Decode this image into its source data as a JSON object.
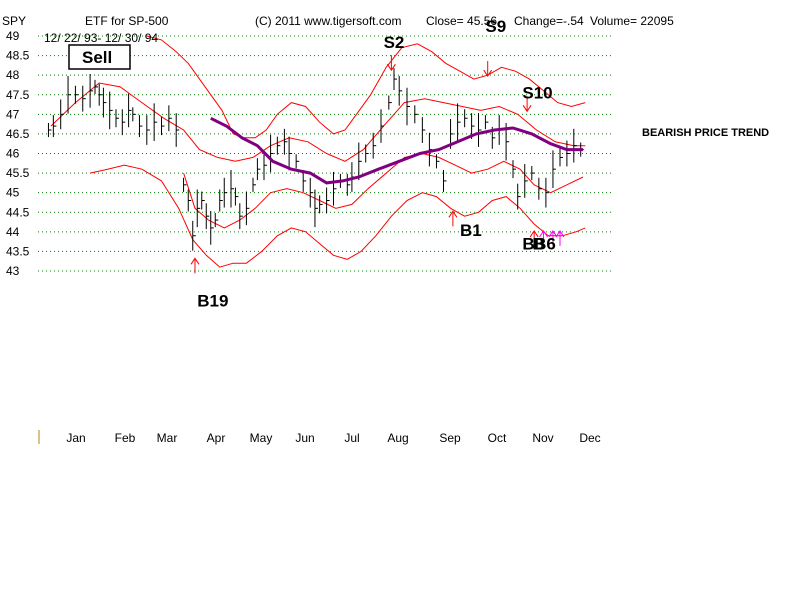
{
  "header": {
    "ticker": "SPY",
    "etf_label": "ETF for SP-500",
    "date_range": "12/ 22/ 93- 12/ 30/ 94",
    "copyright": "(C) 2011 www.tigersoft.com",
    "close_label": "Close=  45.56",
    "change_label": "Change=-.54",
    "volume_label": "Volume= 22095"
  },
  "sell_box_label": "Sell",
  "trend_label": "BEARISH PRICE TREND",
  "colors": {
    "bands": "#ff0000",
    "moving_average": "#800080",
    "bars": "#000000",
    "grid": "#008000",
    "signal_arrows_red": "#ff0000",
    "signal_arrows_magenta": "#ff00ff",
    "axis_tick": "#b8860b"
  },
  "chart_data": {
    "type": "line",
    "title": "",
    "xlabel": "",
    "ylabel": "",
    "ylim": [
      43,
      49
    ],
    "grid": true,
    "y_ticks": [
      49,
      48.5,
      48,
      47.5,
      47,
      46.5,
      46,
      45.5,
      45,
      44.5,
      44,
      43.5,
      43
    ],
    "x_ticks": [
      "Jan",
      "Feb",
      "Mar",
      "Apr",
      "May",
      "Jun",
      "Jul",
      "Aug",
      "Sep",
      "Oct",
      "Nov",
      "Dec"
    ],
    "series": [
      {
        "kind": "price-bars",
        "values": [
          [
            0.05,
            46.6
          ],
          [
            0.15,
            46.7
          ],
          [
            0.3,
            47.0
          ],
          [
            0.45,
            47.5
          ],
          [
            0.6,
            47.5
          ],
          [
            0.75,
            47.4
          ],
          [
            0.9,
            47.6
          ],
          [
            1.0,
            47.7
          ],
          [
            1.1,
            47.5
          ],
          [
            1.2,
            47.3
          ],
          [
            1.35,
            47.1
          ],
          [
            1.5,
            46.9
          ],
          [
            1.65,
            46.8
          ],
          [
            1.8,
            47.1
          ],
          [
            1.9,
            47.0
          ],
          [
            2.05,
            46.7
          ],
          [
            2.2,
            46.6
          ],
          [
            2.35,
            46.8
          ],
          [
            2.5,
            46.7
          ],
          [
            2.65,
            46.9
          ],
          [
            2.8,
            46.6
          ],
          [
            2.95,
            45.2
          ],
          [
            3.05,
            44.8
          ],
          [
            3.15,
            43.9
          ],
          [
            3.25,
            44.6
          ],
          [
            3.35,
            44.8
          ],
          [
            3.45,
            44.4
          ],
          [
            3.55,
            44.1
          ],
          [
            3.65,
            44.3
          ],
          [
            3.75,
            44.8
          ],
          [
            3.85,
            45.0
          ],
          [
            4.0,
            45.1
          ],
          [
            4.1,
            44.9
          ],
          [
            4.2,
            44.4
          ],
          [
            4.35,
            44.6
          ],
          [
            4.5,
            45.2
          ],
          [
            4.6,
            45.6
          ],
          [
            4.75,
            45.7
          ],
          [
            4.9,
            46.0
          ],
          [
            5.05,
            46.2
          ],
          [
            5.2,
            46.3
          ],
          [
            5.3,
            46.0
          ],
          [
            5.45,
            45.8
          ],
          [
            5.6,
            45.3
          ],
          [
            5.75,
            45.0
          ],
          [
            5.85,
            44.6
          ],
          [
            5.95,
            44.7
          ],
          [
            6.1,
            44.8
          ],
          [
            6.25,
            45.1
          ],
          [
            6.4,
            45.3
          ],
          [
            6.55,
            45.2
          ],
          [
            6.65,
            45.4
          ],
          [
            6.8,
            45.8
          ],
          [
            6.95,
            46.0
          ],
          [
            7.1,
            46.2
          ],
          [
            7.25,
            46.7
          ],
          [
            7.4,
            47.3
          ],
          [
            7.5,
            47.9
          ],
          [
            7.6,
            47.6
          ],
          [
            7.75,
            47.2
          ],
          [
            7.9,
            47.0
          ],
          [
            8.05,
            46.6
          ],
          [
            8.2,
            46.1
          ],
          [
            8.35,
            45.8
          ],
          [
            8.5,
            45.3
          ],
          [
            8.65,
            46.5
          ],
          [
            8.8,
            46.8
          ],
          [
            8.95,
            46.9
          ],
          [
            9.1,
            46.7
          ],
          [
            9.25,
            46.6
          ],
          [
            9.4,
            46.8
          ],
          [
            9.55,
            46.4
          ],
          [
            9.7,
            46.6
          ],
          [
            9.85,
            46.3
          ],
          [
            10.0,
            45.6
          ],
          [
            10.1,
            44.9
          ],
          [
            10.25,
            45.3
          ],
          [
            10.4,
            45.5
          ],
          [
            10.55,
            45.1
          ],
          [
            10.7,
            45.0
          ],
          [
            10.85,
            45.6
          ],
          [
            11.0,
            45.9
          ],
          [
            11.15,
            46.0
          ],
          [
            11.3,
            46.2
          ],
          [
            11.45,
            46.1
          ]
        ]
      },
      {
        "kind": "moving-average",
        "values": [
          [
            3.55,
            46.9
          ],
          [
            3.9,
            46.7
          ],
          [
            4.25,
            46.4
          ],
          [
            4.6,
            46.2
          ],
          [
            4.95,
            45.8
          ],
          [
            5.35,
            45.6
          ],
          [
            5.75,
            45.5
          ],
          [
            6.1,
            45.25
          ],
          [
            6.45,
            45.3
          ],
          [
            6.8,
            45.4
          ],
          [
            7.2,
            45.6
          ],
          [
            7.6,
            45.8
          ],
          [
            8.0,
            46.0
          ],
          [
            8.4,
            46.1
          ],
          [
            8.8,
            46.3
          ],
          [
            9.2,
            46.5
          ],
          [
            9.6,
            46.6
          ],
          [
            10.0,
            46.65
          ],
          [
            10.4,
            46.5
          ],
          [
            10.8,
            46.25
          ],
          [
            11.15,
            46.1
          ],
          [
            11.5,
            46.1
          ]
        ]
      },
      {
        "kind": "upper-band",
        "values": [
          [
            2.2,
            49.0
          ],
          [
            2.5,
            48.9
          ],
          [
            2.8,
            48.6
          ],
          [
            3.05,
            48.3
          ],
          [
            3.3,
            47.9
          ],
          [
            3.55,
            47.5
          ],
          [
            3.8,
            47.1
          ],
          [
            4.05,
            46.5
          ],
          [
            4.3,
            46.4
          ],
          [
            4.55,
            46.4
          ],
          [
            4.8,
            46.6
          ],
          [
            5.05,
            47.0
          ],
          [
            5.35,
            47.3
          ],
          [
            5.65,
            47.2
          ],
          [
            5.95,
            46.8
          ],
          [
            6.25,
            46.5
          ],
          [
            6.5,
            46.6
          ],
          [
            6.75,
            47.0
          ],
          [
            7.05,
            47.5
          ],
          [
            7.35,
            48.2
          ],
          [
            7.65,
            48.7
          ],
          [
            7.95,
            48.8
          ],
          [
            8.25,
            48.6
          ],
          [
            8.55,
            48.3
          ],
          [
            8.85,
            48.1
          ],
          [
            9.15,
            47.9
          ],
          [
            9.45,
            48.0
          ],
          [
            9.75,
            48.2
          ],
          [
            10.05,
            48.1
          ],
          [
            10.35,
            47.9
          ],
          [
            10.65,
            47.6
          ],
          [
            10.95,
            47.3
          ],
          [
            11.25,
            47.2
          ],
          [
            11.55,
            47.3
          ]
        ]
      },
      {
        "kind": "lower-band",
        "values": [
          [
            0.9,
            45.5
          ],
          [
            1.3,
            45.6
          ],
          [
            1.7,
            45.7
          ],
          [
            2.1,
            45.6
          ],
          [
            2.5,
            45.3
          ],
          [
            2.85,
            44.6
          ],
          [
            3.15,
            43.8
          ],
          [
            3.45,
            43.4
          ],
          [
            3.75,
            43.1
          ],
          [
            4.05,
            43.2
          ],
          [
            4.35,
            43.2
          ],
          [
            4.7,
            43.5
          ],
          [
            5.05,
            43.9
          ],
          [
            5.35,
            44.1
          ],
          [
            5.65,
            44.0
          ],
          [
            5.95,
            43.7
          ],
          [
            6.25,
            43.4
          ],
          [
            6.55,
            43.3
          ],
          [
            6.85,
            43.5
          ],
          [
            7.15,
            43.9
          ],
          [
            7.45,
            44.4
          ],
          [
            7.75,
            44.8
          ],
          [
            8.05,
            45.0
          ],
          [
            8.35,
            44.9
          ],
          [
            8.65,
            44.6
          ],
          [
            8.95,
            44.4
          ],
          [
            9.25,
            44.5
          ],
          [
            9.55,
            44.8
          ],
          [
            9.85,
            44.9
          ],
          [
            10.15,
            44.6
          ],
          [
            10.45,
            44.2
          ],
          [
            10.75,
            43.9
          ],
          [
            11.05,
            43.9
          ],
          [
            11.35,
            44.0
          ],
          [
            11.55,
            44.1
          ]
        ]
      },
      {
        "kind": "inner-upper-band",
        "values": [
          [
            0.1,
            46.7
          ],
          [
            0.6,
            47.3
          ],
          [
            1.1,
            47.8
          ],
          [
            1.6,
            47.7
          ],
          [
            2.1,
            47.3
          ],
          [
            2.55,
            46.9
          ],
          [
            2.95,
            46.6
          ],
          [
            3.3,
            46.1
          ],
          [
            3.7,
            45.9
          ],
          [
            4.1,
            45.8
          ],
          [
            4.5,
            45.9
          ],
          [
            4.9,
            46.2
          ],
          [
            5.3,
            46.4
          ],
          [
            5.7,
            46.3
          ],
          [
            6.1,
            46.0
          ],
          [
            6.5,
            45.8
          ],
          [
            6.9,
            46.1
          ],
          [
            7.3,
            46.7
          ],
          [
            7.7,
            47.3
          ],
          [
            8.1,
            47.4
          ],
          [
            8.5,
            47.3
          ],
          [
            8.9,
            47.2
          ],
          [
            9.3,
            47.1
          ],
          [
            9.7,
            47.2
          ],
          [
            10.1,
            47.0
          ],
          [
            10.5,
            46.6
          ],
          [
            10.9,
            46.3
          ],
          [
            11.3,
            46.2
          ],
          [
            11.55,
            46.2
          ]
        ]
      },
      {
        "kind": "inner-lower-band",
        "values": [
          [
            2.95,
            45.5
          ],
          [
            3.2,
            44.6
          ],
          [
            3.5,
            44.3
          ],
          [
            3.85,
            44.1
          ],
          [
            4.2,
            44.3
          ],
          [
            4.55,
            44.6
          ],
          [
            4.9,
            45.0
          ],
          [
            5.25,
            45.1
          ],
          [
            5.6,
            45.0
          ],
          [
            5.95,
            44.8
          ],
          [
            6.3,
            44.6
          ],
          [
            6.65,
            44.7
          ],
          [
            7.0,
            45.1
          ],
          [
            7.35,
            45.5
          ],
          [
            7.7,
            45.9
          ],
          [
            8.05,
            46.0
          ],
          [
            8.4,
            45.9
          ],
          [
            8.75,
            45.7
          ],
          [
            9.1,
            45.5
          ],
          [
            9.45,
            45.6
          ],
          [
            9.8,
            45.8
          ],
          [
            10.15,
            45.6
          ],
          [
            10.45,
            45.2
          ],
          [
            10.8,
            45.0
          ],
          [
            11.15,
            45.2
          ],
          [
            11.5,
            45.4
          ]
        ]
      }
    ],
    "signals": [
      {
        "label": "B19",
        "x": 3.2,
        "price": 43.4,
        "dir": "up",
        "color": "red"
      },
      {
        "label": "S2",
        "x": 7.45,
        "price": 48.05,
        "dir": "down",
        "color": "red"
      },
      {
        "label": "S9",
        "x": 9.45,
        "price": 47.9,
        "dir": "down",
        "color": "red"
      },
      {
        "label": "B1",
        "x": 8.7,
        "price": 44.6,
        "dir": "up",
        "color": "red"
      },
      {
        "label": "S10",
        "x": 10.3,
        "price": 47.0,
        "dir": "down",
        "color": "red"
      },
      {
        "label": "B6",
        "x": 10.45,
        "price": 44.1,
        "dir": "up",
        "color": "red"
      },
      {
        "label": "",
        "x": 10.65,
        "price": 44.1,
        "dir": "up",
        "color": "magenta"
      },
      {
        "label": "",
        "x": 10.85,
        "price": 44.1,
        "dir": "up",
        "color": "magenta"
      },
      {
        "label": "",
        "x": 11.0,
        "price": 44.1,
        "dir": "up",
        "color": "magenta"
      }
    ],
    "signal_text": [
      {
        "label": "S2",
        "x": 7.3,
        "price": 48.7
      },
      {
        "label": "S9",
        "x": 9.4,
        "price": 49.1
      },
      {
        "label": "S10",
        "x": 10.2,
        "price": 47.4
      },
      {
        "label": "B1",
        "x": 8.85,
        "price": 43.9
      },
      {
        "label": "B19",
        "x": 3.25,
        "price": 42.1
      },
      {
        "label": "B6",
        "x": 10.45,
        "price": 43.55
      }
    ]
  }
}
